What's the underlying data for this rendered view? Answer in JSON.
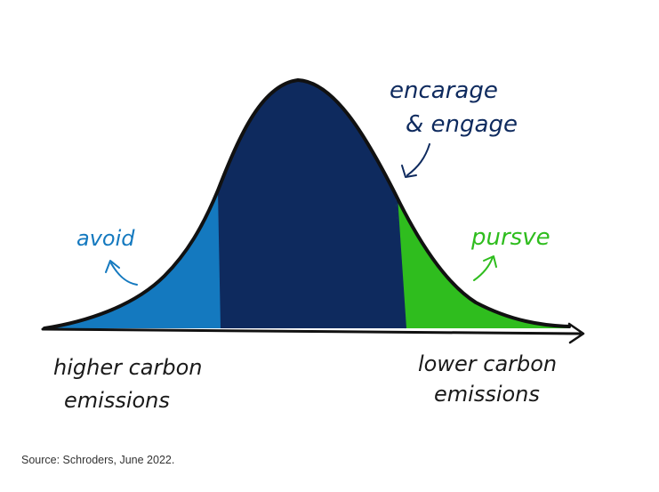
{
  "labels": {
    "encourage_line1": "encarage",
    "encourage_line2": "& engage",
    "avoid": "avoid",
    "pursue": "pursve",
    "higher_line1": "higher carbon",
    "higher_line2": "emissions",
    "lower_line1": "lower carbon",
    "lower_line2": "emissions"
  },
  "source": "Source: Schroders, June 2022.",
  "colors": {
    "avoid": "#1479bf",
    "engage": "#0e2a5e",
    "pursue": "#2fbd1e",
    "outline": "#111111",
    "handwriting_text": "#1a1a1a"
  }
}
